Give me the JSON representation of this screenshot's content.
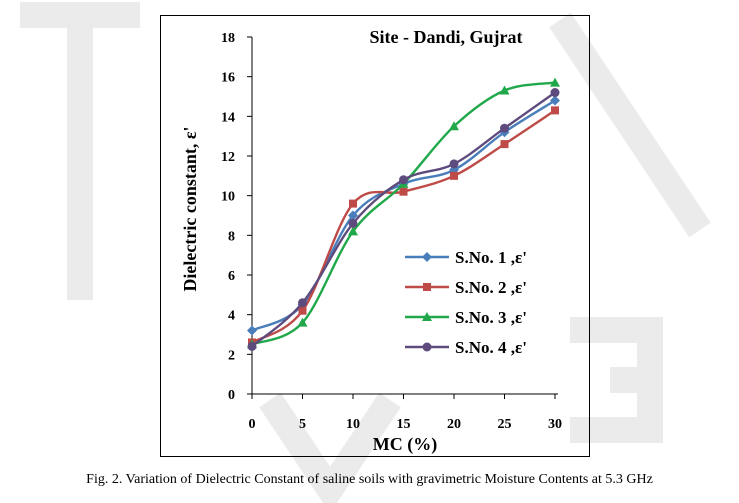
{
  "caption": "Fig. 2.  Variation of Dielectric Constant of saline soils with gravimetric Moisture Contents at 5.3 GHz",
  "chart_data": {
    "type": "line",
    "title": "Site  - Dandi, Gujrat",
    "xlabel": "MC (%)",
    "ylabel": "Dielectric constant, ε'",
    "x": [
      0,
      5,
      10,
      15,
      20,
      25,
      30
    ],
    "xticks": [
      "0",
      "5",
      "10",
      "15",
      "20",
      "25",
      "30"
    ],
    "yticks": [
      "0",
      "2",
      "4",
      "6",
      "8",
      "10",
      "12",
      "14",
      "16",
      "18"
    ],
    "xlim": [
      0,
      30
    ],
    "ylim": [
      0,
      18
    ],
    "grid": false,
    "legend_position": "right",
    "series": [
      {
        "name": "S.No. 1 ,ε'",
        "marker": "diamond",
        "color": "#4a7ebb",
        "values": [
          3.2,
          4.5,
          9.0,
          10.6,
          11.3,
          13.2,
          14.8
        ]
      },
      {
        "name": "S.No. 2 ,ε'",
        "marker": "square",
        "color": "#be4b48",
        "values": [
          2.6,
          4.2,
          9.6,
          10.2,
          11.0,
          12.6,
          14.3
        ]
      },
      {
        "name": "S.No. 3 ,ε'",
        "marker": "triangle",
        "color": "#20a84a",
        "values": [
          2.5,
          3.6,
          8.2,
          10.6,
          13.5,
          15.3,
          15.7
        ]
      },
      {
        "name": "S.No. 4 ,ε'",
        "marker": "circle",
        "color": "#5e4b7e",
        "values": [
          2.4,
          4.6,
          8.6,
          10.8,
          11.6,
          13.4,
          15.2
        ]
      }
    ]
  }
}
